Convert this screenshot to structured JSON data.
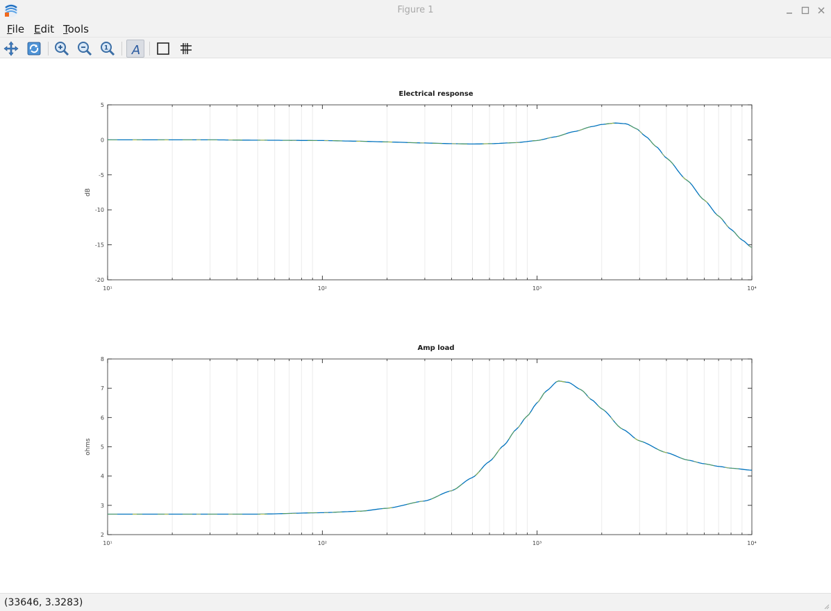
{
  "window": {
    "title": "Figure 1",
    "minimize_icon": "minimize-icon",
    "maximize_icon": "maximize-icon",
    "close_icon": "close-icon"
  },
  "menu": {
    "items": [
      {
        "label": "File",
        "mnemonic": "F"
      },
      {
        "label": "Edit",
        "mnemonic": "E"
      },
      {
        "label": "Tools",
        "mnemonic": "T"
      }
    ]
  },
  "toolbar": {
    "tools": [
      "pan-icon",
      "rotate-icon",
      "zoom-in-icon",
      "zoom-out-icon",
      "zoom-reset-icon",
      "text-icon",
      "axes-box-icon",
      "grid-icon"
    ],
    "active_tool": "text-icon"
  },
  "colors": {
    "line_primary": "#0072bd",
    "line_secondary": "#77ac30",
    "line_highlight": "#edd01a",
    "axis": "#262626",
    "grid": "#ebebeb"
  },
  "chart_data": [
    {
      "type": "line",
      "title": "Electrical response",
      "xlabel": "",
      "ylabel": "dB",
      "xscale": "log",
      "xlim": [
        10,
        10000
      ],
      "ylim": [
        -20,
        5
      ],
      "xticks": [
        10,
        100,
        1000,
        10000
      ],
      "xtick_labels": [
        "10¹",
        "10²",
        "10³",
        "10⁴"
      ],
      "yticks": [
        -20,
        -15,
        -10,
        -5,
        0,
        5
      ],
      "ytick_labels": [
        "-20",
        "-15",
        "-10",
        "-5",
        "0",
        "5"
      ],
      "grid": "minor-x",
      "x": [
        10,
        30,
        50,
        100,
        150,
        200,
        300,
        400,
        500,
        600,
        800,
        1000,
        1200,
        1500,
        1800,
        2000,
        2300,
        2600,
        2900,
        3200,
        3600,
        4000,
        5000,
        6000,
        7000,
        8000,
        9000,
        10000
      ],
      "y": [
        0,
        0,
        -0.05,
        -0.1,
        -0.2,
        -0.3,
        -0.45,
        -0.55,
        -0.6,
        -0.55,
        -0.4,
        -0.1,
        0.4,
        1.2,
        1.9,
        2.2,
        2.4,
        2.3,
        1.6,
        0.5,
        -1.0,
        -2.6,
        -5.8,
        -8.6,
        -10.9,
        -12.8,
        -14.3,
        -15.4
      ]
    },
    {
      "type": "line",
      "title": "Amp load",
      "xlabel": "",
      "ylabel": "ohms",
      "xscale": "log",
      "xlim": [
        10,
        10000
      ],
      "ylim": [
        2,
        8
      ],
      "xticks": [
        10,
        100,
        1000,
        10000
      ],
      "xtick_labels": [
        "10¹",
        "10²",
        "10³",
        "10⁴"
      ],
      "yticks": [
        2,
        3,
        4,
        5,
        6,
        7,
        8
      ],
      "ytick_labels": [
        "2",
        "3",
        "4",
        "5",
        "6",
        "7",
        "8"
      ],
      "grid": "minor-x",
      "x": [
        10,
        30,
        50,
        100,
        150,
        200,
        300,
        400,
        500,
        600,
        700,
        800,
        900,
        1000,
        1100,
        1250,
        1400,
        1600,
        1800,
        2000,
        2500,
        3000,
        4000,
        5000,
        6000,
        7000,
        8000,
        10000
      ],
      "y": [
        2.7,
        2.7,
        2.7,
        2.75,
        2.8,
        2.9,
        3.15,
        3.5,
        3.95,
        4.5,
        5.05,
        5.6,
        6.05,
        6.5,
        6.9,
        7.25,
        7.2,
        6.95,
        6.6,
        6.3,
        5.6,
        5.2,
        4.8,
        4.55,
        4.42,
        4.33,
        4.27,
        4.2
      ]
    }
  ],
  "status": {
    "coordinates": "(33646, 3.3283)"
  }
}
